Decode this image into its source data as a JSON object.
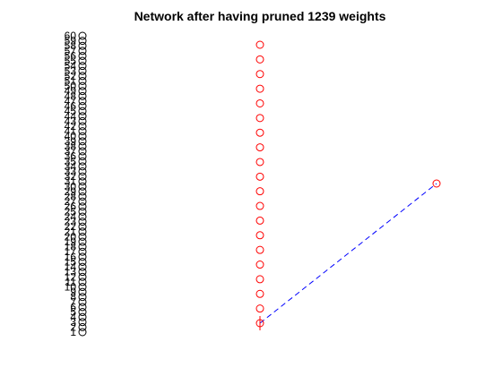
{
  "title": "Network after having pruned 1239 weights",
  "colors": {
    "input": "#000000",
    "hidden": "#ff0000",
    "output": "#ff0000",
    "edge": "#0000ff",
    "background": "#ffffff"
  },
  "network": {
    "input_nodes": {
      "count": 60,
      "labels": [
        "1",
        "2",
        "3",
        "4",
        "5",
        "6",
        "7",
        "8",
        "9",
        "10",
        "11",
        "12",
        "13",
        "14",
        "15",
        "16",
        "17",
        "18",
        "19",
        "20",
        "21",
        "22",
        "23",
        "24",
        "25",
        "26",
        "27",
        "28",
        "29",
        "30",
        "31",
        "32",
        "33",
        "34",
        "35",
        "36",
        "37",
        "38",
        "39",
        "40",
        "41",
        "42",
        "43",
        "44",
        "45",
        "46",
        "47",
        "48",
        "49",
        "50",
        "51",
        "52",
        "53",
        "54",
        "55",
        "56",
        "57",
        "58",
        "59",
        "60"
      ]
    },
    "hidden_nodes": {
      "count": 20
    },
    "output_nodes": {
      "count": 1
    },
    "edges": [
      {
        "from_layer": "hidden",
        "from_index": 1,
        "to_layer": "output",
        "to_index": 1,
        "style": "dashed"
      }
    ],
    "bias_marker_on_hidden": 1
  }
}
